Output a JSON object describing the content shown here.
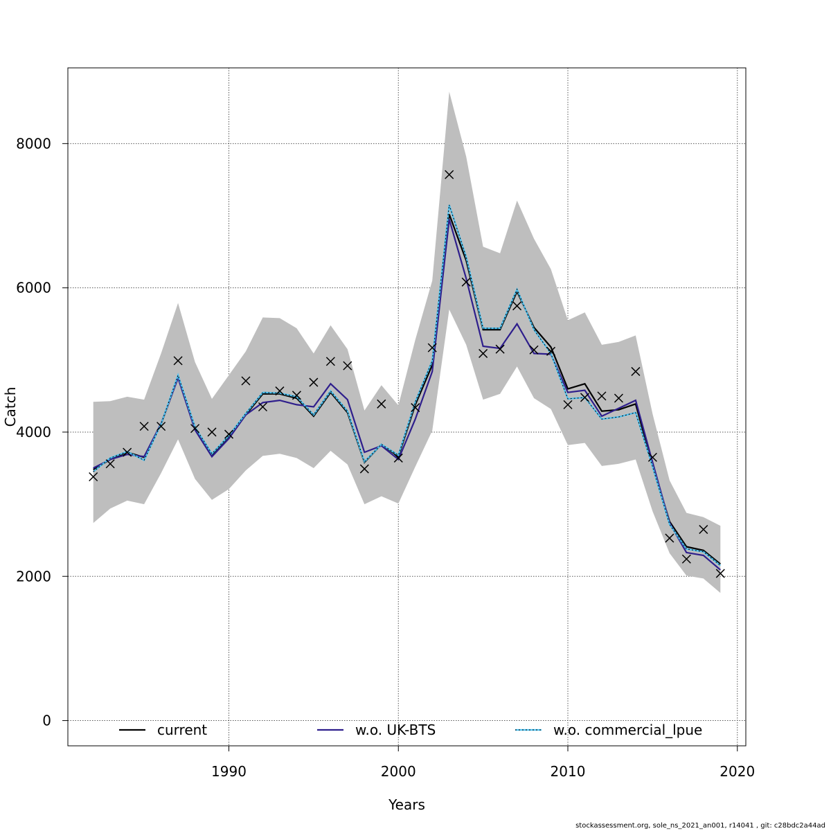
{
  "chart_data": {
    "type": "line",
    "xlabel": "Years",
    "ylabel": "Catch",
    "xlim": [
      1980.5,
      2020.5
    ],
    "ylim": [
      -350,
      9050
    ],
    "x_ticks": [
      1990,
      2000,
      2010,
      2020
    ],
    "y_ticks": [
      0,
      2000,
      4000,
      6000,
      8000
    ],
    "grid": true,
    "legend_position": "bottom",
    "x": [
      1982,
      1983,
      1984,
      1985,
      1986,
      1987,
      1988,
      1989,
      1990,
      1991,
      1992,
      1993,
      1994,
      1995,
      1996,
      1997,
      1998,
      1999,
      2000,
      2001,
      2002,
      2003,
      2004,
      2005,
      2006,
      2007,
      2008,
      2009,
      2010,
      2011,
      2012,
      2013,
      2014,
      2015,
      2016,
      2017,
      2018,
      2019
    ],
    "ci_band": {
      "lower": [
        2740,
        2940,
        3050,
        3000,
        3430,
        3900,
        3350,
        3060,
        3210,
        3470,
        3670,
        3700,
        3640,
        3500,
        3740,
        3550,
        3000,
        3110,
        3010,
        3520,
        4020,
        5700,
        5210,
        4450,
        4530,
        4910,
        4470,
        4320,
        3820,
        3850,
        3530,
        3560,
        3620,
        2900,
        2320,
        2010,
        1970,
        1770
      ],
      "upper": [
        4420,
        4430,
        4490,
        4450,
        5090,
        5790,
        4970,
        4460,
        4790,
        5120,
        5590,
        5580,
        5440,
        5090,
        5480,
        5150,
        4300,
        4650,
        4370,
        5280,
        6100,
        8720,
        7820,
        6570,
        6480,
        7210,
        6680,
        6260,
        5550,
        5660,
        5210,
        5250,
        5340,
        4250,
        3330,
        2880,
        2820,
        2700
      ]
    },
    "series": [
      {
        "name": "current",
        "color": "#000000",
        "dash": "solid",
        "values": [
          3480,
          3620,
          3720,
          3650,
          4110,
          4760,
          4050,
          3680,
          3940,
          4240,
          4530,
          4530,
          4470,
          4220,
          4550,
          4270,
          3580,
          3830,
          3660,
          4380,
          4930,
          7020,
          6380,
          5420,
          5420,
          5950,
          5450,
          5180,
          4600,
          4670,
          4290,
          4310,
          4390,
          3530,
          2760,
          2410,
          2360,
          2170
        ]
      },
      {
        "name": "w.o. UK-BTS",
        "color": "#2e1e8c",
        "dash": "solid",
        "values": [
          3500,
          3620,
          3690,
          3660,
          4120,
          4750,
          4030,
          3660,
          3910,
          4240,
          4410,
          4440,
          4380,
          4350,
          4670,
          4450,
          3720,
          3810,
          3620,
          4180,
          4840,
          6950,
          6130,
          5190,
          5160,
          5500,
          5090,
          5080,
          4550,
          4580,
          4220,
          4330,
          4440,
          3580,
          2740,
          2330,
          2290,
          2090
        ]
      },
      {
        "name": "w.o. commercial_lpue",
        "color": "#4dc3f3",
        "dash": "dotted",
        "values": [
          3450,
          3640,
          3730,
          3610,
          4110,
          4790,
          4070,
          3700,
          3950,
          4260,
          4550,
          4540,
          4490,
          4240,
          4570,
          4290,
          3590,
          3830,
          3680,
          4420,
          4990,
          7150,
          6430,
          5440,
          5440,
          5980,
          5420,
          5090,
          4460,
          4480,
          4180,
          4210,
          4270,
          3520,
          2720,
          2380,
          2340,
          2150
        ]
      }
    ],
    "observed": {
      "marker": "x",
      "values": [
        3380,
        3560,
        3720,
        4080,
        4080,
        4990,
        4050,
        4000,
        3970,
        4710,
        4350,
        4570,
        4510,
        4690,
        4980,
        4920,
        3490,
        4390,
        3640,
        4340,
        5170,
        7570,
        6080,
        5090,
        5150,
        5750,
        5140,
        5120,
        4380,
        4480,
        4500,
        4470,
        4840,
        3650,
        2530,
        2240,
        2650,
        2040
      ]
    }
  },
  "footer": "stockassessment.org, sole_ns_2021_an001, r14041 , git: c28bdc2a44ad"
}
